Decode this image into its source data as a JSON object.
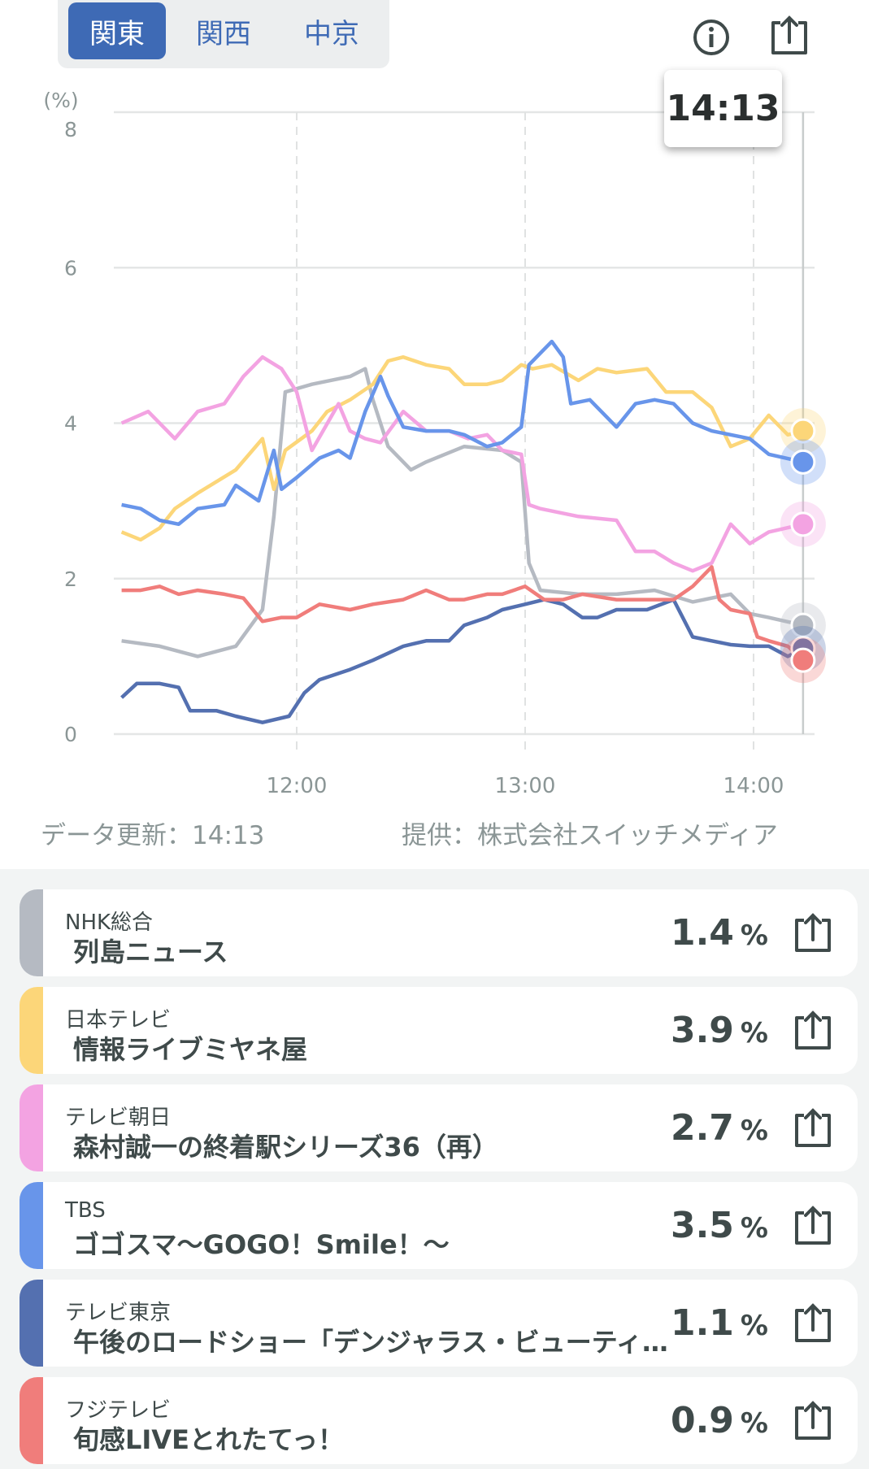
{
  "region_tabs": [
    {
      "label": "関東",
      "active": true
    },
    {
      "label": "関西",
      "active": false
    },
    {
      "label": "中京",
      "active": false
    }
  ],
  "icons": {
    "info": "info-circle-icon",
    "share": "share-icon"
  },
  "tooltip_time": "14:13",
  "footer": {
    "updated": "データ更新：14:13",
    "provider": "提供：株式会社スイッチメディア"
  },
  "chart_data": {
    "type": "line",
    "ylabel": "(%)",
    "ylim": [
      0,
      8
    ],
    "yticks": [
      "0",
      "2",
      "4",
      "6",
      "8"
    ],
    "xticks": [
      "12:00",
      "13:00",
      "14:00"
    ],
    "xlim": [
      "11:14",
      "14:13"
    ],
    "grid": true,
    "cursor_time": "14:13",
    "series": [
      {
        "name": "NHK総合",
        "color": "#b5bac2",
        "points": [
          [
            "11:14",
            1.2
          ],
          [
            "11:24",
            1.13
          ],
          [
            "11:34",
            1.0
          ],
          [
            "11:44",
            1.13
          ],
          [
            "11:51",
            1.6
          ],
          [
            "11:54",
            2.8
          ],
          [
            "11:57",
            4.4
          ],
          [
            "12:04",
            4.5
          ],
          [
            "12:14",
            4.6
          ],
          [
            "12:18",
            4.7
          ],
          [
            "12:20",
            4.3
          ],
          [
            "12:24",
            3.7
          ],
          [
            "12:30",
            3.4
          ],
          [
            "12:34",
            3.5
          ],
          [
            "12:44",
            3.7
          ],
          [
            "12:54",
            3.65
          ],
          [
            "12:59",
            3.5
          ],
          [
            "13:01",
            2.2
          ],
          [
            "13:04",
            1.85
          ],
          [
            "13:14",
            1.8
          ],
          [
            "13:24",
            1.8
          ],
          [
            "13:34",
            1.85
          ],
          [
            "13:44",
            1.7
          ],
          [
            "13:54",
            1.8
          ],
          [
            "13:59",
            1.55
          ],
          [
            "14:04",
            1.5
          ],
          [
            "14:13",
            1.4
          ]
        ]
      },
      {
        "name": "日本テレビ",
        "color": "#fcd679",
        "points": [
          [
            "11:14",
            2.6
          ],
          [
            "11:19",
            2.5
          ],
          [
            "11:24",
            2.65
          ],
          [
            "11:28",
            2.9
          ],
          [
            "11:34",
            3.1
          ],
          [
            "11:44",
            3.4
          ],
          [
            "11:51",
            3.8
          ],
          [
            "11:54",
            3.15
          ],
          [
            "11:57",
            3.65
          ],
          [
            "12:04",
            3.9
          ],
          [
            "12:08",
            4.15
          ],
          [
            "12:14",
            4.3
          ],
          [
            "12:20",
            4.5
          ],
          [
            "12:24",
            4.8
          ],
          [
            "12:28",
            4.85
          ],
          [
            "12:34",
            4.75
          ],
          [
            "12:40",
            4.7
          ],
          [
            "12:44",
            4.5
          ],
          [
            "12:50",
            4.5
          ],
          [
            "12:54",
            4.55
          ],
          [
            "12:59",
            4.75
          ],
          [
            "13:02",
            4.7
          ],
          [
            "13:07",
            4.75
          ],
          [
            "13:14",
            4.55
          ],
          [
            "13:19",
            4.7
          ],
          [
            "13:24",
            4.65
          ],
          [
            "13:32",
            4.7
          ],
          [
            "13:37",
            4.4
          ],
          [
            "13:44",
            4.4
          ],
          [
            "13:49",
            4.2
          ],
          [
            "13:54",
            3.7
          ],
          [
            "13:59",
            3.8
          ],
          [
            "14:04",
            4.1
          ],
          [
            "14:09",
            3.85
          ],
          [
            "14:13",
            3.9
          ]
        ]
      },
      {
        "name": "テレビ朝日",
        "color": "#f3a3e2",
        "points": [
          [
            "11:14",
            4.0
          ],
          [
            "11:21",
            4.15
          ],
          [
            "11:28",
            3.8
          ],
          [
            "11:34",
            4.15
          ],
          [
            "11:41",
            4.25
          ],
          [
            "11:46",
            4.6
          ],
          [
            "11:51",
            4.85
          ],
          [
            "11:56",
            4.7
          ],
          [
            "12:00",
            4.4
          ],
          [
            "12:04",
            3.65
          ],
          [
            "12:11",
            4.25
          ],
          [
            "12:14",
            3.9
          ],
          [
            "12:18",
            3.8
          ],
          [
            "12:22",
            3.75
          ],
          [
            "12:28",
            4.15
          ],
          [
            "12:34",
            3.9
          ],
          [
            "12:40",
            3.9
          ],
          [
            "12:45",
            3.8
          ],
          [
            "12:50",
            3.85
          ],
          [
            "12:54",
            3.65
          ],
          [
            "12:59",
            3.6
          ],
          [
            "13:01",
            2.95
          ],
          [
            "13:04",
            2.9
          ],
          [
            "13:14",
            2.8
          ],
          [
            "13:24",
            2.75
          ],
          [
            "13:29",
            2.35
          ],
          [
            "13:34",
            2.35
          ],
          [
            "13:39",
            2.2
          ],
          [
            "13:44",
            2.1
          ],
          [
            "13:49",
            2.2
          ],
          [
            "13:54",
            2.7
          ],
          [
            "13:59",
            2.45
          ],
          [
            "14:04",
            2.6
          ],
          [
            "14:13",
            2.7
          ]
        ]
      },
      {
        "name": "TBS",
        "color": "#6895ea",
        "points": [
          [
            "11:14",
            2.95
          ],
          [
            "11:19",
            2.9
          ],
          [
            "11:24",
            2.75
          ],
          [
            "11:29",
            2.7
          ],
          [
            "11:34",
            2.9
          ],
          [
            "11:41",
            2.95
          ],
          [
            "11:44",
            3.2
          ],
          [
            "11:50",
            3.0
          ],
          [
            "11:54",
            3.65
          ],
          [
            "11:56",
            3.15
          ],
          [
            "12:00",
            3.3
          ],
          [
            "12:06",
            3.55
          ],
          [
            "12:11",
            3.65
          ],
          [
            "12:14",
            3.55
          ],
          [
            "12:18",
            4.15
          ],
          [
            "12:22",
            4.6
          ],
          [
            "12:24",
            4.35
          ],
          [
            "12:28",
            3.95
          ],
          [
            "12:34",
            3.9
          ],
          [
            "12:40",
            3.9
          ],
          [
            "12:44",
            3.85
          ],
          [
            "12:50",
            3.7
          ],
          [
            "12:54",
            3.75
          ],
          [
            "12:59",
            3.95
          ],
          [
            "13:01",
            4.75
          ],
          [
            "13:04",
            4.9
          ],
          [
            "13:07",
            5.05
          ],
          [
            "13:10",
            4.85
          ],
          [
            "13:12",
            4.25
          ],
          [
            "13:17",
            4.3
          ],
          [
            "13:24",
            3.95
          ],
          [
            "13:29",
            4.25
          ],
          [
            "13:34",
            4.3
          ],
          [
            "13:39",
            4.25
          ],
          [
            "13:44",
            4.0
          ],
          [
            "13:49",
            3.9
          ],
          [
            "13:54",
            3.85
          ],
          [
            "13:59",
            3.8
          ],
          [
            "14:04",
            3.6
          ],
          [
            "14:13",
            3.5
          ]
        ]
      },
      {
        "name": "テレビ東京",
        "color": "#5470b0",
        "points": [
          [
            "11:14",
            0.47
          ],
          [
            "11:18",
            0.65
          ],
          [
            "11:24",
            0.65
          ],
          [
            "11:29",
            0.6
          ],
          [
            "11:32",
            0.3
          ],
          [
            "11:39",
            0.3
          ],
          [
            "11:44",
            0.23
          ],
          [
            "11:51",
            0.15
          ],
          [
            "11:58",
            0.23
          ],
          [
            "12:02",
            0.53
          ],
          [
            "12:06",
            0.7
          ],
          [
            "12:14",
            0.83
          ],
          [
            "12:20",
            0.95
          ],
          [
            "12:28",
            1.13
          ],
          [
            "12:34",
            1.2
          ],
          [
            "12:40",
            1.2
          ],
          [
            "12:44",
            1.4
          ],
          [
            "12:50",
            1.5
          ],
          [
            "12:54",
            1.6
          ],
          [
            "13:00",
            1.67
          ],
          [
            "13:05",
            1.73
          ],
          [
            "13:10",
            1.67
          ],
          [
            "13:15",
            1.5
          ],
          [
            "13:19",
            1.5
          ],
          [
            "13:24",
            1.6
          ],
          [
            "13:32",
            1.6
          ],
          [
            "13:39",
            1.73
          ],
          [
            "13:44",
            1.25
          ],
          [
            "13:49",
            1.2
          ],
          [
            "13:54",
            1.15
          ],
          [
            "13:59",
            1.13
          ],
          [
            "14:04",
            1.13
          ],
          [
            "14:09",
            1.0
          ],
          [
            "14:13",
            1.1
          ]
        ]
      },
      {
        "name": "フジテレビ",
        "color": "#f07d7b",
        "points": [
          [
            "11:14",
            1.85
          ],
          [
            "11:19",
            1.85
          ],
          [
            "11:24",
            1.9
          ],
          [
            "11:29",
            1.8
          ],
          [
            "11:34",
            1.85
          ],
          [
            "11:41",
            1.8
          ],
          [
            "11:46",
            1.75
          ],
          [
            "11:51",
            1.45
          ],
          [
            "11:56",
            1.5
          ],
          [
            "12:00",
            1.5
          ],
          [
            "12:06",
            1.67
          ],
          [
            "12:14",
            1.6
          ],
          [
            "12:20",
            1.67
          ],
          [
            "12:28",
            1.73
          ],
          [
            "12:34",
            1.85
          ],
          [
            "12:40",
            1.73
          ],
          [
            "12:44",
            1.73
          ],
          [
            "12:50",
            1.8
          ],
          [
            "12:54",
            1.8
          ],
          [
            "13:00",
            1.9
          ],
          [
            "13:05",
            1.73
          ],
          [
            "13:10",
            1.73
          ],
          [
            "13:15",
            1.8
          ],
          [
            "13:24",
            1.73
          ],
          [
            "13:32",
            1.73
          ],
          [
            "13:39",
            1.73
          ],
          [
            "13:44",
            1.9
          ],
          [
            "13:49",
            2.15
          ],
          [
            "13:51",
            1.73
          ],
          [
            "13:54",
            1.6
          ],
          [
            "13:59",
            1.55
          ],
          [
            "14:01",
            1.25
          ],
          [
            "14:04",
            1.2
          ],
          [
            "14:09",
            1.13
          ],
          [
            "14:13",
            0.95
          ]
        ]
      }
    ]
  },
  "programs": [
    {
      "channel": "NHK総合",
      "title": "列島ニュース",
      "rating": "1.4",
      "unit": "%",
      "color": "#b5bac2"
    },
    {
      "channel": "日本テレビ",
      "title": "情報ライブミヤネ屋",
      "rating": "3.9",
      "unit": "%",
      "color": "#fcd679"
    },
    {
      "channel": "テレビ朝日",
      "title": "森村誠一の終着駅シリーズ36（再）",
      "rating": "2.7",
      "unit": "%",
      "color": "#f3a3e2"
    },
    {
      "channel": "TBS",
      "title": "ゴゴスマ～GOGO！Smile！～",
      "rating": "3.5",
      "unit": "%",
      "color": "#6895ea"
    },
    {
      "channel": "テレビ東京",
      "title": "午後のロードショー「デンジャラス・ビューティー」",
      "rating": "1.1",
      "unit": "%",
      "color": "#5470b0"
    },
    {
      "channel": "フジテレビ",
      "title": "旬感LIVEとれたてっ！",
      "rating": "0.9",
      "unit": "%",
      "color": "#f07d7b"
    }
  ]
}
